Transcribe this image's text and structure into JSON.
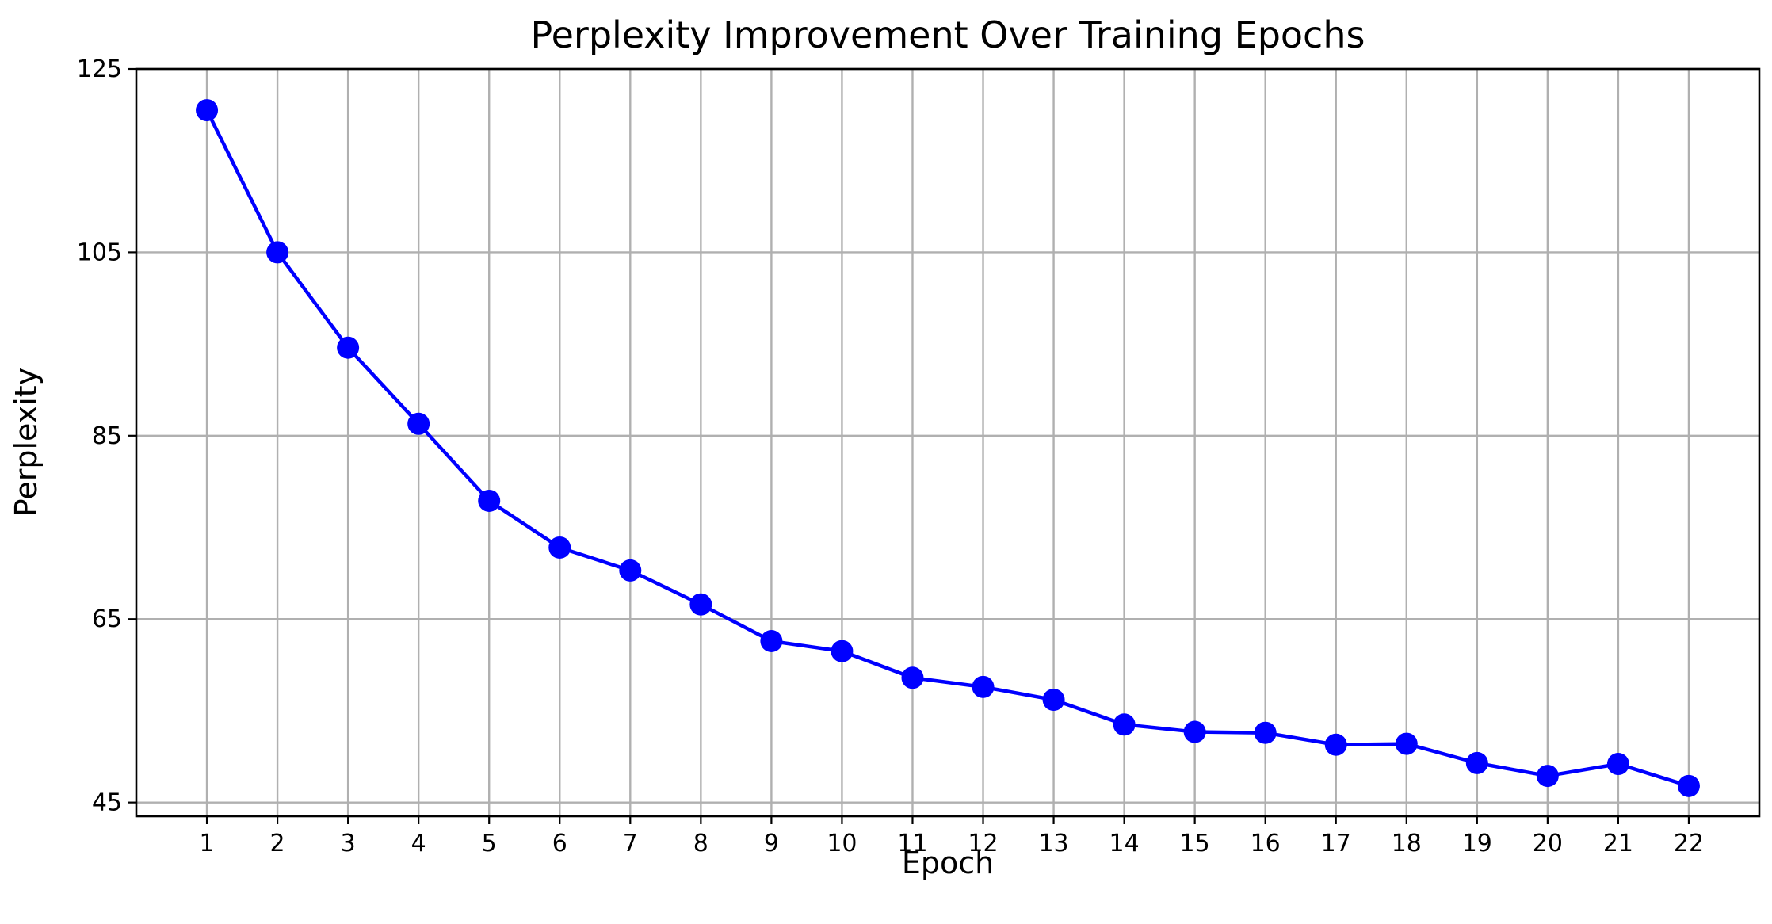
{
  "chart_data": {
    "type": "line",
    "title": "Perplexity Improvement Over Training Epochs",
    "xlabel": "Epoch",
    "ylabel": "Perplexity",
    "x": [
      1,
      2,
      3,
      4,
      5,
      6,
      7,
      8,
      9,
      10,
      11,
      12,
      13,
      14,
      15,
      16,
      17,
      18,
      19,
      20,
      21,
      22
    ],
    "series": [
      {
        "values": [
          120.5,
          105.0,
          94.6,
          86.3,
          77.9,
          72.8,
          70.3,
          66.6,
          62.6,
          61.5,
          58.6,
          57.6,
          56.2,
          53.5,
          52.7,
          52.6,
          51.3,
          51.4,
          49.3,
          47.9,
          49.2,
          46.8
        ],
        "color": "#0000ff",
        "marker": "circle"
      }
    ],
    "xlim": [
      0,
      23
    ],
    "ylim": [
      43.5,
      125
    ],
    "yticks": [
      45,
      65,
      85,
      105,
      125
    ],
    "grid": true,
    "legend": "none"
  }
}
